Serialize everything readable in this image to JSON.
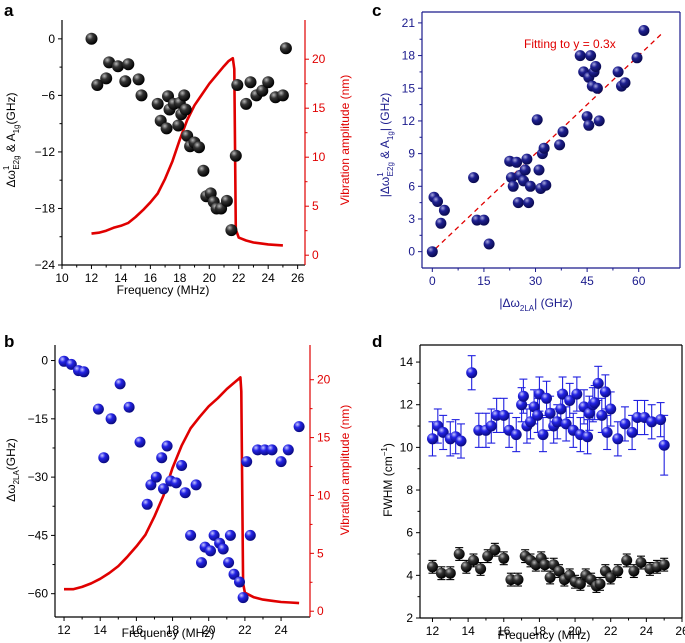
{
  "colors": {
    "black": "#000000",
    "red": "#e00000",
    "navy": "#1a1a8c",
    "ball_blue": "#2020e0",
    "fit_red": "#e00000"
  },
  "chart_data": [
    {
      "id": "a",
      "letter": "a",
      "type": "scatter",
      "xlabel": "Frequency (MHz)",
      "ylabel_main": "Δω",
      "ylabel_sub_top": "1",
      "ylabel_sub_bot": "E2g",
      "ylabel_rest": " & A",
      "ylabel_sub2": "1g",
      "ylabel_tail": "(GHz)",
      "y2label": "Vibration amplitude (nm)",
      "xlim": [
        10,
        26.5
      ],
      "ylim": [
        -24,
        2
      ],
      "y2lim": [
        -1,
        24
      ],
      "xticks": [
        10,
        12,
        14,
        16,
        18,
        20,
        22,
        24,
        26
      ],
      "yticks": [
        0,
        -6,
        -12,
        -18,
        -24
      ],
      "y2ticks": [
        0,
        5,
        10,
        15,
        20
      ],
      "points": [
        [
          12,
          0
        ],
        [
          12.4,
          -4.9
        ],
        [
          13.0,
          -4.2
        ],
        [
          13.2,
          -2.5
        ],
        [
          13.8,
          -2.9
        ],
        [
          14.3,
          -4.5
        ],
        [
          14.5,
          -2.7
        ],
        [
          15.2,
          -4.3
        ],
        [
          15.4,
          -6.0
        ],
        [
          16.5,
          -6.9
        ],
        [
          16.7,
          -8.7
        ],
        [
          17.1,
          -9.5
        ],
        [
          17.2,
          -6.1
        ],
        [
          17.3,
          -7.5
        ],
        [
          17.6,
          -6.9
        ],
        [
          17.9,
          -9.2
        ],
        [
          18.0,
          -6.8
        ],
        [
          18.1,
          -8.0
        ],
        [
          18.3,
          -6.0
        ],
        [
          18.4,
          -7.5
        ],
        [
          18.5,
          -10.3
        ],
        [
          18.7,
          -11.4
        ],
        [
          19.0,
          -11.0
        ],
        [
          19.3,
          -11.5
        ],
        [
          19.6,
          -14.0
        ],
        [
          19.8,
          -16.7
        ],
        [
          20.1,
          -16.4
        ],
        [
          20.3,
          -17.3
        ],
        [
          20.5,
          -18.0
        ],
        [
          20.8,
          -18.0
        ],
        [
          21.2,
          -17.2
        ],
        [
          21.5,
          -20.3
        ],
        [
          21.8,
          -12.4
        ],
        [
          21.9,
          -4.9
        ],
        [
          22.5,
          -6.9
        ],
        [
          22.8,
          -4.6
        ],
        [
          23.2,
          -6.0
        ],
        [
          23.6,
          -5.5
        ],
        [
          24.0,
          -4.6
        ],
        [
          24.5,
          -6.2
        ],
        [
          25.0,
          -6.0
        ],
        [
          25.2,
          -1.0
        ]
      ],
      "amplitude": {
        "x": [
          12,
          12.5,
          13,
          13.5,
          14,
          14.5,
          15,
          15.5,
          16,
          16.5,
          17,
          17.5,
          18,
          18.5,
          19,
          19.5,
          20,
          20.5,
          21,
          21.3,
          21.6,
          21.7,
          21.8,
          21.9,
          22,
          22.5,
          23,
          23.5,
          24,
          24.5,
          25
        ],
        "y": [
          2.2,
          2.3,
          2.5,
          2.8,
          3.0,
          3.3,
          3.9,
          4.6,
          5.4,
          6.3,
          7.8,
          9.6,
          11.8,
          13.8,
          15.3,
          16.4,
          17.5,
          18.4,
          19.3,
          19.8,
          20.1,
          19.0,
          2.6,
          2.2,
          1.8,
          1.5,
          1.3,
          1.2,
          1.1,
          1.05,
          1.0
        ]
      }
    },
    {
      "id": "b",
      "letter": "b",
      "type": "scatter",
      "xlabel": "Frequency (MHz)",
      "ylabel_main": "Δω",
      "ylabel_sub": "2LA",
      "ylabel_tail": "(GHz)",
      "y2label": "Vibration amplitude (nm)",
      "xlim": [
        11.5,
        25.6
      ],
      "ylim": [
        -66,
        4
      ],
      "y2lim": [
        -0.5,
        23
      ],
      "xticks": [
        12,
        14,
        16,
        18,
        20,
        22,
        24
      ],
      "yticks": [
        0,
        -15,
        -30,
        -45,
        -60
      ],
      "y2ticks": [
        0,
        5,
        10,
        15,
        20
      ],
      "points": [
        [
          12.0,
          -0.2
        ],
        [
          12.4,
          -1.0
        ],
        [
          12.8,
          -2.6
        ],
        [
          13.1,
          -2.9
        ],
        [
          13.9,
          -12.5
        ],
        [
          14.2,
          -25.0
        ],
        [
          14.6,
          -15.0
        ],
        [
          15.1,
          -6.0
        ],
        [
          15.6,
          -12.0
        ],
        [
          16.2,
          -21.0
        ],
        [
          16.6,
          -37.0
        ],
        [
          16.8,
          -32.0
        ],
        [
          17.1,
          -30.0
        ],
        [
          17.4,
          -25.0
        ],
        [
          17.5,
          -33.0
        ],
        [
          17.7,
          -22.0
        ],
        [
          17.9,
          -31.0
        ],
        [
          18.2,
          -31.5
        ],
        [
          18.5,
          -27.0
        ],
        [
          18.7,
          -34.0
        ],
        [
          19.0,
          -45.0
        ],
        [
          19.3,
          -32.0
        ],
        [
          19.6,
          -52.0
        ],
        [
          19.8,
          -48.0
        ],
        [
          20.1,
          -49.0
        ],
        [
          20.3,
          -45.0
        ],
        [
          20.6,
          -47.0
        ],
        [
          20.8,
          -48.5
        ],
        [
          21.1,
          -52.0
        ],
        [
          21.2,
          -45.0
        ],
        [
          21.4,
          -55.0
        ],
        [
          21.7,
          -57.0
        ],
        [
          21.9,
          -61.0
        ],
        [
          22.1,
          -26.0
        ],
        [
          22.3,
          -45.0
        ],
        [
          22.7,
          -23.0
        ],
        [
          23.1,
          -23.0
        ],
        [
          23.5,
          -23.0
        ],
        [
          24.0,
          -26.0
        ],
        [
          24.4,
          -23.0
        ],
        [
          25.0,
          -17.0
        ]
      ],
      "amplitude": {
        "x": [
          12,
          12.5,
          13,
          13.5,
          14,
          14.5,
          15,
          15.5,
          16,
          16.5,
          17,
          17.5,
          18,
          18.5,
          19,
          19.5,
          20,
          20.5,
          21,
          21.3,
          21.6,
          21.75,
          21.8,
          21.9,
          22,
          22.5,
          23,
          23.5,
          24,
          24.5,
          25
        ],
        "y": [
          1.9,
          1.9,
          2.1,
          2.4,
          2.8,
          3.3,
          3.9,
          4.7,
          5.6,
          6.6,
          8.2,
          10.0,
          12.4,
          14.3,
          15.8,
          16.8,
          17.7,
          18.4,
          19.2,
          19.6,
          20.0,
          20.2,
          19.0,
          2.4,
          1.6,
          1.2,
          1.0,
          0.9,
          0.8,
          0.75,
          0.7
        ]
      }
    },
    {
      "id": "c",
      "letter": "c",
      "type": "scatter",
      "xlabel_main": "|Δω",
      "xlabel_sub": "2LA",
      "xlabel_tail": "| (GHz)",
      "ylabel_main": "|Δω",
      "ylabel_sub_top": "1",
      "ylabel_sub_bot": "E2g",
      "ylabel_rest": " & A",
      "ylabel_sub2": "1g",
      "ylabel_tail": "| (GHz)",
      "fit_label": "Fitting to y = 0.3x",
      "xlim": [
        -3,
        72
      ],
      "ylim": [
        -1.5,
        22
      ],
      "xticks": [
        0,
        15,
        30,
        45,
        60
      ],
      "yticks": [
        0,
        3,
        6,
        9,
        12,
        15,
        18,
        21
      ],
      "fit": {
        "slope": 0.3,
        "x": [
          -1,
          67
        ]
      },
      "points": [
        [
          0.0,
          0.0
        ],
        [
          0.5,
          5.0
        ],
        [
          1.5,
          4.6
        ],
        [
          2.5,
          2.6
        ],
        [
          3.5,
          3.8
        ],
        [
          12.0,
          6.8
        ],
        [
          13.0,
          2.9
        ],
        [
          15.0,
          2.9
        ],
        [
          16.5,
          0.7
        ],
        [
          22.5,
          8.3
        ],
        [
          23.0,
          6.8
        ],
        [
          23.5,
          6.0
        ],
        [
          24.5,
          8.2
        ],
        [
          25.0,
          4.5
        ],
        [
          25.5,
          7.0
        ],
        [
          26.5,
          6.5
        ],
        [
          27.0,
          7.5
        ],
        [
          27.5,
          8.5
        ],
        [
          28.0,
          4.5
        ],
        [
          28.5,
          6.0
        ],
        [
          30.5,
          12.1
        ],
        [
          31.0,
          7.5
        ],
        [
          31.5,
          5.8
        ],
        [
          32.0,
          9.0
        ],
        [
          32.5,
          9.5
        ],
        [
          33.0,
          6.1
        ],
        [
          37.0,
          9.8
        ],
        [
          38.0,
          11.0
        ],
        [
          43.0,
          18.0
        ],
        [
          44.0,
          16.5
        ],
        [
          45.0,
          12.4
        ],
        [
          45.5,
          11.6
        ],
        [
          45.5,
          16.0
        ],
        [
          46.0,
          18.0
        ],
        [
          46.5,
          15.2
        ],
        [
          47.0,
          16.5
        ],
        [
          47.5,
          17.0
        ],
        [
          48.0,
          15.0
        ],
        [
          48.5,
          12.0
        ],
        [
          54.0,
          16.5
        ],
        [
          55.0,
          15.2
        ],
        [
          56.0,
          15.5
        ],
        [
          59.5,
          17.8
        ],
        [
          61.5,
          20.3
        ]
      ]
    },
    {
      "id": "d",
      "letter": "d",
      "type": "scatter",
      "xlabel": "Frequency (MHz)",
      "ylabel_main": "FWHM (cm",
      "ylabel_sup": "−1",
      "ylabel_tail": ")",
      "xlim": [
        11.3,
        26
      ],
      "ylim": [
        2,
        14.8
      ],
      "xticks": [
        12,
        14,
        16,
        18,
        20,
        22,
        24,
        26
      ],
      "yticks": [
        2,
        4,
        6,
        8,
        10,
        12,
        14
      ],
      "blue_series": [
        [
          12.0,
          10.4,
          0.8
        ],
        [
          12.3,
          11.0,
          0.8
        ],
        [
          12.6,
          10.7,
          0.8
        ],
        [
          13.0,
          10.4,
          0.8
        ],
        [
          13.3,
          10.5,
          0.8
        ],
        [
          13.6,
          10.3,
          0.8
        ],
        [
          14.2,
          13.5,
          0.8
        ],
        [
          14.6,
          10.8,
          0.8
        ],
        [
          15.0,
          10.8,
          0.8
        ],
        [
          15.3,
          11.0,
          0.8
        ],
        [
          15.6,
          11.5,
          0.8
        ],
        [
          16.0,
          11.5,
          0.8
        ],
        [
          16.3,
          10.8,
          0.8
        ],
        [
          16.7,
          10.6,
          0.8
        ],
        [
          17.0,
          12.0,
          0.8
        ],
        [
          17.1,
          12.4,
          0.8
        ],
        [
          17.3,
          11.0,
          0.8
        ],
        [
          17.5,
          11.2,
          0.8
        ],
        [
          17.7,
          11.9,
          0.8
        ],
        [
          17.9,
          11.5,
          0.8
        ],
        [
          18.0,
          12.5,
          0.8
        ],
        [
          18.2,
          10.6,
          0.8
        ],
        [
          18.4,
          12.3,
          0.8
        ],
        [
          18.6,
          11.6,
          0.8
        ],
        [
          18.8,
          11.0,
          0.8
        ],
        [
          19.0,
          11.2,
          0.8
        ],
        [
          19.2,
          11.8,
          0.8
        ],
        [
          19.3,
          12.5,
          0.8
        ],
        [
          19.5,
          11.1,
          0.8
        ],
        [
          19.7,
          12.2,
          0.8
        ],
        [
          19.9,
          10.8,
          0.8
        ],
        [
          20.1,
          12.5,
          0.8
        ],
        [
          20.3,
          10.6,
          0.8
        ],
        [
          20.5,
          11.9,
          0.8
        ],
        [
          20.7,
          10.5,
          0.8
        ],
        [
          20.8,
          11.6,
          0.8
        ],
        [
          21.0,
          12.0,
          0.8
        ],
        [
          21.1,
          12.1,
          0.8
        ],
        [
          21.3,
          13.0,
          0.8
        ],
        [
          21.5,
          11.5,
          0.8
        ],
        [
          21.7,
          12.6,
          0.8
        ],
        [
          21.8,
          10.7,
          0.8
        ],
        [
          22.0,
          11.8,
          0.8
        ],
        [
          22.4,
          10.4,
          0.8
        ],
        [
          22.8,
          11.1,
          0.8
        ],
        [
          23.2,
          10.7,
          0.8
        ],
        [
          23.5,
          11.4,
          0.8
        ],
        [
          23.9,
          11.4,
          0.8
        ],
        [
          24.3,
          11.2,
          0.8
        ],
        [
          24.8,
          11.3,
          0.8
        ],
        [
          25.0,
          10.1,
          1.4
        ]
      ],
      "black_series": [
        [
          12.0,
          4.4,
          0.3
        ],
        [
          12.5,
          4.1,
          0.3
        ],
        [
          13.0,
          4.1,
          0.3
        ],
        [
          13.5,
          5.0,
          0.3
        ],
        [
          13.9,
          4.4,
          0.3
        ],
        [
          14.3,
          4.7,
          0.3
        ],
        [
          14.7,
          4.3,
          0.3
        ],
        [
          15.1,
          4.9,
          0.3
        ],
        [
          15.5,
          5.2,
          0.3
        ],
        [
          16.0,
          4.8,
          0.3
        ],
        [
          16.4,
          3.8,
          0.3
        ],
        [
          16.8,
          3.8,
          0.3
        ],
        [
          17.2,
          4.9,
          0.3
        ],
        [
          17.5,
          4.7,
          0.3
        ],
        [
          17.8,
          4.5,
          0.3
        ],
        [
          18.1,
          4.8,
          0.3
        ],
        [
          18.3,
          4.5,
          0.3
        ],
        [
          18.6,
          3.9,
          0.3
        ],
        [
          18.8,
          4.5,
          0.3
        ],
        [
          19.1,
          4.2,
          0.3
        ],
        [
          19.4,
          3.8,
          0.3
        ],
        [
          19.7,
          4.0,
          0.3
        ],
        [
          20.0,
          3.7,
          0.3
        ],
        [
          20.3,
          3.6,
          0.3
        ],
        [
          20.6,
          4.0,
          0.3
        ],
        [
          20.9,
          3.8,
          0.3
        ],
        [
          21.2,
          3.5,
          0.3
        ],
        [
          21.4,
          3.6,
          0.3
        ],
        [
          21.7,
          4.2,
          0.3
        ],
        [
          22.0,
          3.9,
          0.3
        ],
        [
          22.4,
          4.2,
          0.3
        ],
        [
          22.9,
          4.7,
          0.3
        ],
        [
          23.3,
          4.2,
          0.3
        ],
        [
          23.7,
          4.6,
          0.3
        ],
        [
          24.2,
          4.3,
          0.3
        ],
        [
          24.6,
          4.4,
          0.3
        ],
        [
          25.0,
          4.5,
          0.3
        ]
      ]
    }
  ]
}
